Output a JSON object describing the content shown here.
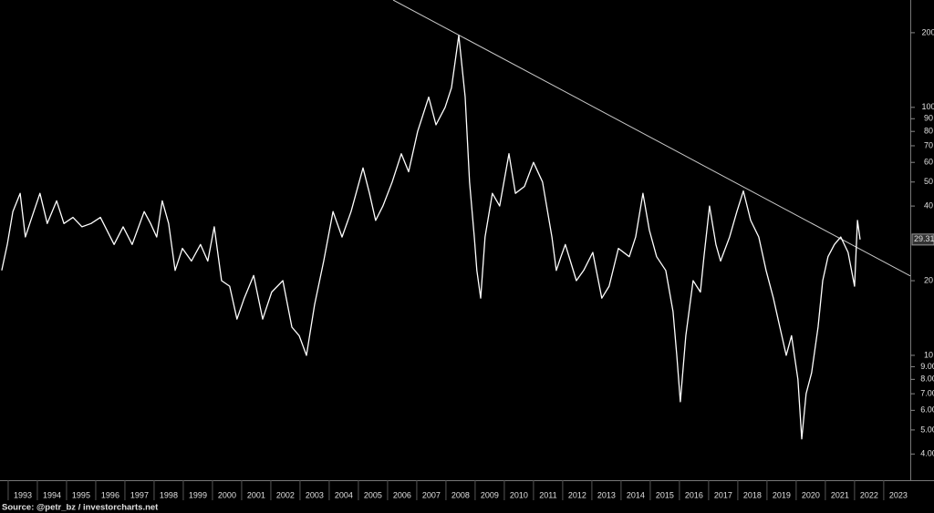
{
  "chart_data": {
    "type": "line",
    "log_scale": true,
    "background": "#000000",
    "source": "Source: @petr_bz / investorcharts.net",
    "x": [
      1992.78,
      1992.97,
      1993.16,
      1993.41,
      1993.59,
      1993.81,
      1994.09,
      1994.34,
      1994.66,
      1994.91,
      1995.22,
      1995.53,
      1995.84,
      1996.16,
      1996.63,
      1996.94,
      1997.25,
      1997.66,
      1997.88,
      1998.09,
      1998.28,
      1998.5,
      1998.72,
      1998.97,
      1999.28,
      1999.59,
      1999.84,
      2000.06,
      2000.31,
      2000.59,
      2000.84,
      2001.09,
      2001.41,
      2001.72,
      2002.03,
      2002.41,
      2002.72,
      2002.97,
      2003.22,
      2003.5,
      2003.81,
      2004.13,
      2004.44,
      2004.75,
      2005.16,
      2005.38,
      2005.59,
      2005.84,
      2006.16,
      2006.47,
      2006.72,
      2007.03,
      2007.41,
      2007.66,
      2007.97,
      2008.19,
      2008.44,
      2008.66,
      2008.81,
      2008.97,
      2009.06,
      2009.19,
      2009.34,
      2009.59,
      2009.84,
      2010.16,
      2010.38,
      2010.69,
      2011,
      2011.31,
      2011.63,
      2011.78,
      2011.94,
      2012.09,
      2012.47,
      2012.72,
      2013.03,
      2013.34,
      2013.59,
      2013.91,
      2014.28,
      2014.5,
      2014.75,
      2014.97,
      2015.22,
      2015.53,
      2015.78,
      2015.91,
      2016.03,
      2016.22,
      2016.47,
      2016.72,
      2016.84,
      2017.03,
      2017.25,
      2017.41,
      2017.72,
      2017.97,
      2018.19,
      2018.44,
      2018.72,
      2018.97,
      2019.22,
      2019.44,
      2019.66,
      2019.84,
      2020.06,
      2020.19,
      2020.34,
      2020.53,
      2020.75,
      2020.91,
      2021.09,
      2021.31,
      2021.53,
      2021.78,
      2022,
      2022.1,
      2022.19
    ],
    "series": [
      {
        "color": "#ffffff",
        "values": [
          22,
          28,
          38,
          45,
          30,
          36,
          45,
          34,
          42,
          34,
          36,
          33,
          34,
          36,
          28,
          33,
          28,
          38,
          34,
          30,
          42,
          34,
          22,
          27,
          24,
          28,
          24,
          33,
          20,
          19,
          14,
          17,
          21,
          14,
          18,
          20,
          13,
          12,
          10,
          16,
          24,
          38,
          30,
          38,
          57,
          45,
          35,
          40,
          50,
          65,
          55,
          80,
          110,
          85,
          100,
          120,
          195,
          110,
          50,
          30,
          22,
          17,
          30,
          45,
          40,
          65,
          45,
          48,
          60,
          50,
          30,
          22,
          25,
          28,
          20,
          22,
          26,
          17,
          19,
          27,
          25,
          30,
          45,
          32,
          25,
          22,
          15,
          10,
          6.5,
          12,
          20,
          18,
          25,
          40,
          28,
          24,
          30,
          38,
          46,
          35,
          30,
          22,
          17,
          13,
          10,
          12,
          8,
          4.6,
          7,
          8.5,
          13,
          20,
          25,
          28,
          30,
          26,
          19,
          35,
          29.31
        ]
      }
    ],
    "trendline": {
      "x": [
        2006.19,
        2023.91
      ],
      "y": [
        271,
        20.9
      ],
      "color": "#c8c8c8"
    },
    "xlim": [
      1992.72,
      2023.91
    ],
    "xticks": [
      1993,
      1994,
      1995,
      1996,
      1997,
      1998,
      1999,
      2000,
      2001,
      2002,
      2003,
      2004,
      2005,
      2006,
      2007,
      2008,
      2009,
      2010,
      2011,
      2012,
      2013,
      2014,
      2015,
      2016,
      2017,
      2018,
      2019,
      2020,
      2021,
      2022,
      2023
    ],
    "ylim": [
      3.19,
      271
    ],
    "yticks": [
      {
        "value": 4,
        "label": "4.00"
      },
      {
        "value": 5,
        "label": "5.00"
      },
      {
        "value": 6,
        "label": "6.00"
      },
      {
        "value": 7,
        "label": "7.00"
      },
      {
        "value": 8,
        "label": "8.00"
      },
      {
        "value": 9,
        "label": "9.00"
      },
      10,
      20,
      40,
      50,
      60,
      70,
      80,
      90,
      100,
      200
    ]
  }
}
